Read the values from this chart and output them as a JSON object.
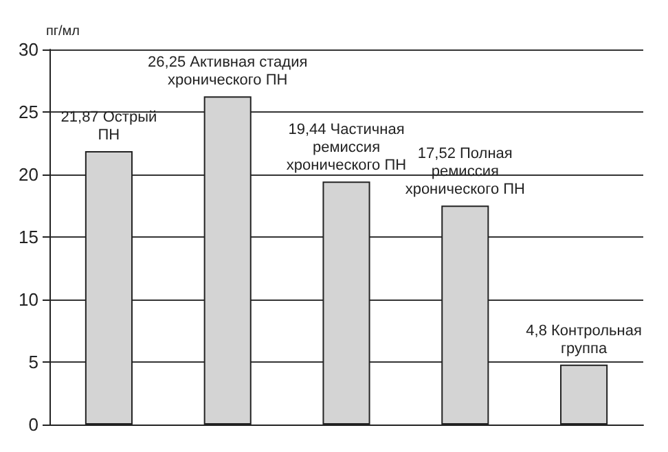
{
  "chart_data": {
    "type": "bar",
    "ylabel": "пг/мл",
    "categories": [
      null,
      null,
      null,
      null,
      null
    ],
    "values": [
      21.87,
      26.25,
      19.44,
      17.52,
      4.8
    ],
    "value_labels": [
      "21,87 Острый\nПН",
      "26,25 Активная стадия\nхронического ПН",
      "19,44 Частичная\nремиссия\nхронического ПН",
      "17,52 Полная\nремиссия\nхронического ПН",
      "4,8 Контрольная\nгруппа"
    ],
    "color": "#d4d4d4",
    "ylim": [
      0,
      30
    ],
    "yticks": [
      0,
      5,
      10,
      15,
      20,
      25,
      30
    ],
    "grid": "y"
  }
}
